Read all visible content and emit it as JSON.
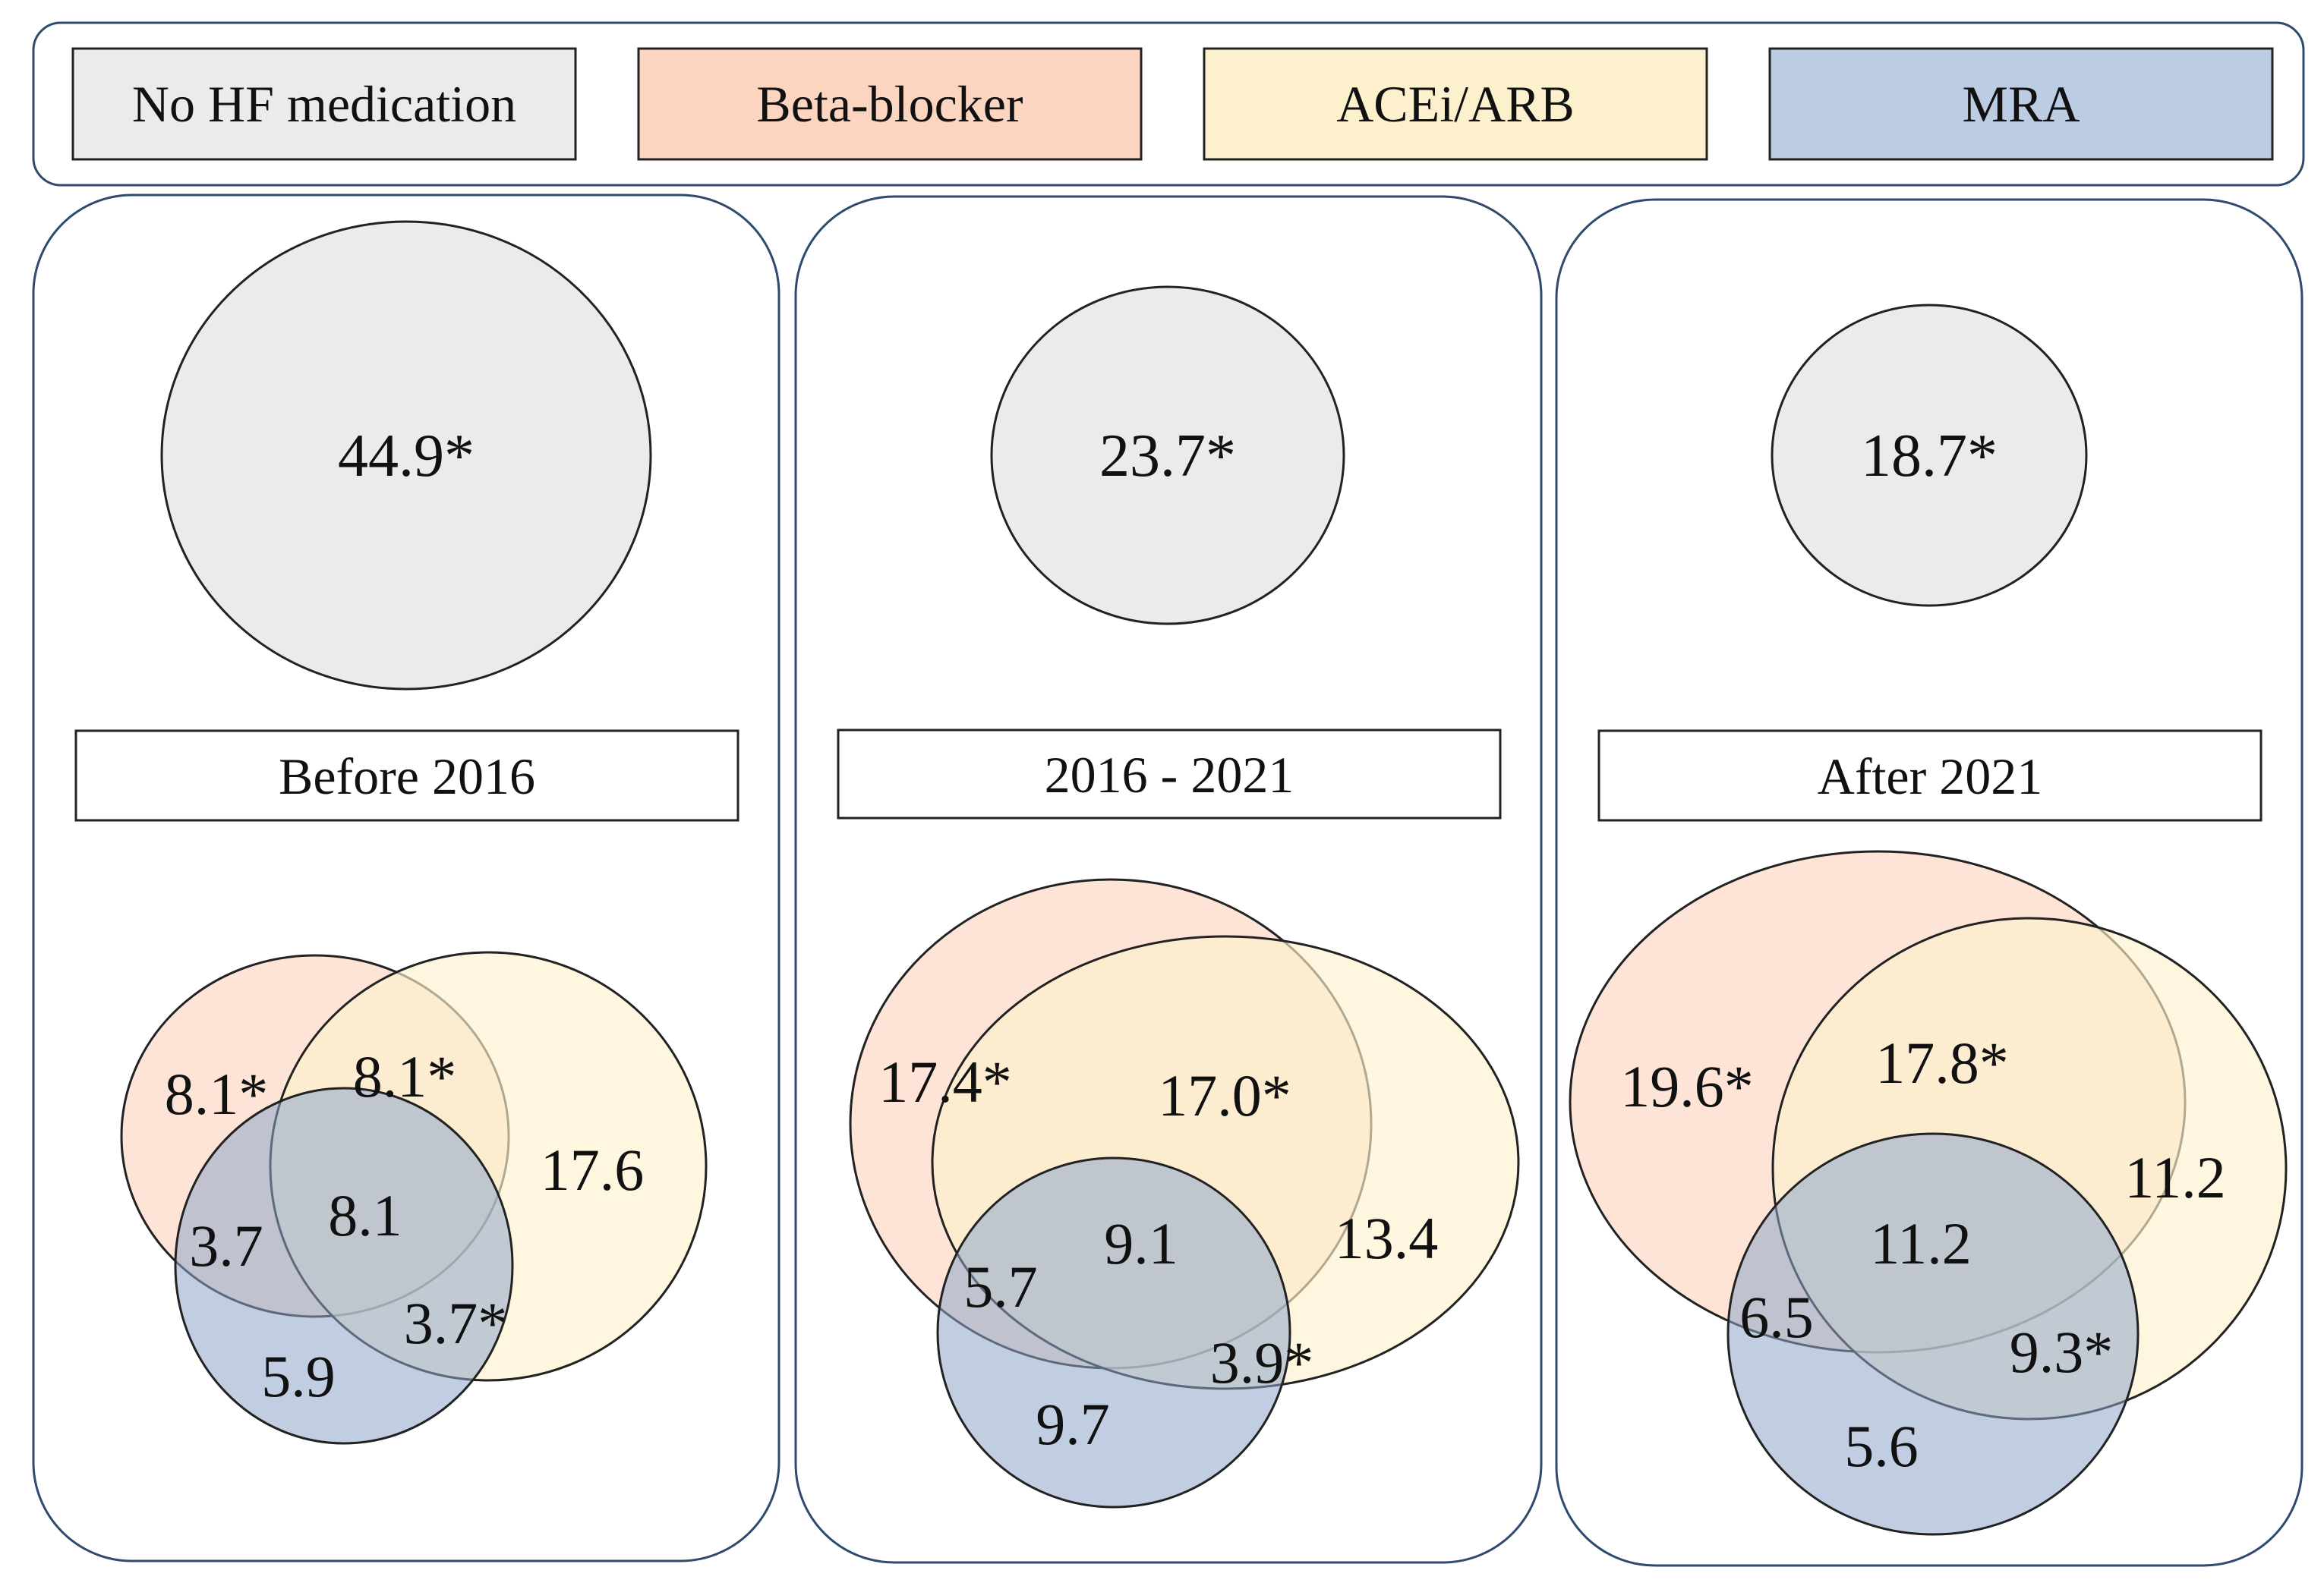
{
  "legend": {
    "items": [
      {
        "label": "No HF medication",
        "color": "#ebebeb"
      },
      {
        "label": "Beta-blocker",
        "color": "#fcd5c0"
      },
      {
        "label": "ACEi/ARB",
        "color": "#fdf1cd"
      },
      {
        "label": "MRA",
        "color": "#bccce2"
      }
    ]
  },
  "panels": [
    {
      "period": "Before 2016",
      "no_medication": "44.9*",
      "venn": {
        "beta_only": "8.1*",
        "beta_acei": "8.1*",
        "acei_only": "17.6",
        "beta_mra": "3.7",
        "all_three": "8.1",
        "acei_mra": "3.7*",
        "mra_only": "5.9"
      }
    },
    {
      "period": "2016 - 2021",
      "no_medication": "23.7*",
      "venn": {
        "beta_only": "17.4*",
        "beta_acei": "17.0*",
        "acei_only": "13.4",
        "beta_mra": "5.7",
        "all_three": "9.1",
        "acei_mra": "3.9*",
        "mra_only": "9.7"
      }
    },
    {
      "period": "After 2021",
      "no_medication": "18.7*",
      "venn": {
        "beta_only": "19.6*",
        "beta_acei": "17.8*",
        "acei_only": "11.2",
        "beta_mra": "6.5",
        "all_three": "11.2",
        "acei_mra": "9.3*",
        "mra_only": "5.6"
      }
    }
  ]
}
